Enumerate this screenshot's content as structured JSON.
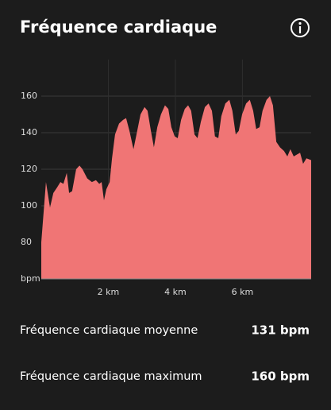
{
  "header": {
    "title": "Fréquence cardiaque"
  },
  "chart_data": {
    "type": "area",
    "color": "#f07575",
    "x": [
      0,
      0.14,
      0.26,
      0.36,
      0.47,
      0.57,
      0.66,
      0.76,
      0.83,
      0.92,
      1.04,
      1.14,
      1.23,
      1.37,
      1.51,
      1.63,
      1.73,
      1.8,
      1.87,
      1.94,
      2.04,
      2.11,
      2.2,
      2.32,
      2.44,
      2.53,
      2.63,
      2.75,
      2.84,
      2.96,
      3.08,
      3.17,
      3.27,
      3.36,
      3.46,
      3.57,
      3.69,
      3.79,
      3.88,
      3.98,
      4.07,
      4.17,
      4.28,
      4.38,
      4.47,
      4.57,
      4.66,
      4.76,
      4.88,
      4.99,
      5.09,
      5.18,
      5.28,
      5.37,
      5.49,
      5.61,
      5.7,
      5.8,
      5.89,
      5.99,
      6.11,
      6.22,
      6.32,
      6.41,
      6.51,
      6.6,
      6.72,
      6.82,
      6.91,
      7.01,
      7.12,
      7.24,
      7.34,
      7.43,
      7.53,
      7.62,
      7.72,
      7.81,
      7.91,
      8.05
    ],
    "values": [
      80,
      113,
      99,
      107,
      110,
      113,
      112,
      118,
      107,
      108,
      120,
      122,
      120,
      115,
      113,
      114,
      112,
      113,
      103,
      109,
      113,
      126,
      139,
      145,
      147,
      148,
      141,
      131,
      139,
      150,
      154,
      152,
      141,
      132,
      143,
      150,
      155,
      153,
      143,
      138,
      137,
      147,
      153,
      155,
      152,
      139,
      137,
      146,
      154,
      156,
      152,
      138,
      137,
      149,
      156,
      158,
      152,
      139,
      141,
      150,
      156,
      158,
      152,
      142,
      143,
      152,
      158,
      160,
      155,
      135,
      132,
      130,
      127,
      131,
      127,
      128,
      129,
      123,
      126,
      125
    ],
    "xlim": [
      0,
      8.05
    ],
    "xticks": [
      {
        "value": 2,
        "label": "2 km"
      },
      {
        "value": 4,
        "label": "4 km"
      },
      {
        "value": 6,
        "label": "6 km"
      }
    ],
    "ylim": [
      60,
      180
    ],
    "yticks": [
      {
        "value": 60,
        "label": "bpm"
      },
      80,
      100,
      120,
      140,
      160
    ],
    "grid": true
  },
  "stats": [
    {
      "label": "Fréquence cardiaque moyenne",
      "value": "131 bpm"
    },
    {
      "label": "Fréquence cardiaque maximum",
      "value": "160 bpm"
    }
  ]
}
